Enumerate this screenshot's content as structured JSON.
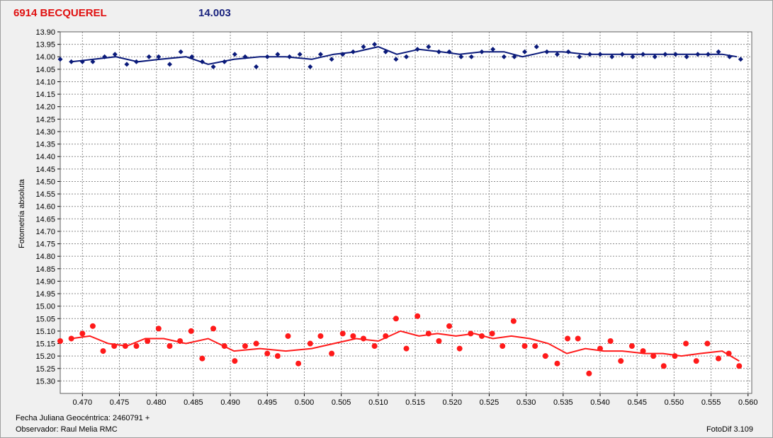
{
  "header": {
    "title": "6914 BECQUEREL",
    "mean_magnitude": "14.003"
  },
  "footer": {
    "jd_label": "Fecha Juliana Geocéntrica: 2460791 +",
    "observer": "Observador: Raul Melia RMC",
    "software": "FotoDif 3.109"
  },
  "colors": {
    "comparison": "#0a1a7a",
    "target": "#ff1a1a",
    "grid": "#8c8c8c",
    "plot_bg": "#ffffff"
  },
  "chart_data": {
    "type": "scatter",
    "title": "6914 BECQUEREL",
    "xlabel": "Fecha Juliana Geocéntrica: 2460791 +",
    "ylabel": "Fotometría absoluta",
    "xlim": [
      0.467,
      0.5605
    ],
    "ylim": [
      13.9,
      15.35
    ],
    "y_inverted": true,
    "grid": true,
    "x_ticks": [
      "0.470",
      "0.475",
      "0.480",
      "0.485",
      "0.490",
      "0.495",
      "0.500",
      "0.505",
      "0.510",
      "0.515",
      "0.520",
      "0.525",
      "0.530",
      "0.535",
      "0.540",
      "0.545",
      "0.550",
      "0.555",
      "0.560"
    ],
    "y_ticks": [
      "13.90",
      "13.95",
      "14.00",
      "14.05",
      "14.10",
      "14.15",
      "14.20",
      "14.25",
      "14.30",
      "14.35",
      "14.40",
      "14.45",
      "14.50",
      "14.55",
      "14.60",
      "14.65",
      "14.70",
      "14.75",
      "14.80",
      "14.85",
      "14.90",
      "14.95",
      "15.00",
      "15.05",
      "15.10",
      "15.15",
      "15.20",
      "15.25",
      "15.30"
    ],
    "series": [
      {
        "name": "",
        "marker": "diamond",
        "x": [
          0.467,
          0.4685,
          0.47,
          0.4714,
          0.473,
          0.4744,
          0.476,
          0.4773,
          0.479,
          0.4803,
          0.4818,
          0.4833,
          0.4848,
          0.4862,
          0.4877,
          0.4892,
          0.4906,
          0.492,
          0.4935,
          0.495,
          0.4964,
          0.498,
          0.4994,
          0.5008,
          0.5022,
          0.5037,
          0.5052,
          0.5066,
          0.508,
          0.5095,
          0.511,
          0.5124,
          0.5138,
          0.5153,
          0.5168,
          0.5182,
          0.5196,
          0.5212,
          0.5226,
          0.524,
          0.5255,
          0.527,
          0.5284,
          0.5298,
          0.5314,
          0.5328,
          0.5342,
          0.5357,
          0.5372,
          0.5386,
          0.54,
          0.5416,
          0.543,
          0.5444,
          0.5458,
          0.5474,
          0.5488,
          0.5502,
          0.5517,
          0.5532,
          0.5546,
          0.556,
          0.5575,
          0.559
        ],
        "y": [
          14.01,
          14.02,
          14.02,
          14.02,
          14.0,
          13.99,
          14.03,
          14.02,
          14.0,
          14.0,
          14.03,
          13.98,
          14.0,
          14.02,
          14.04,
          14.02,
          13.99,
          14.0,
          14.04,
          14.0,
          13.99,
          14.0,
          13.99,
          14.04,
          13.99,
          14.01,
          13.99,
          13.98,
          13.96,
          13.95,
          13.98,
          14.01,
          14.0,
          13.97,
          13.96,
          13.98,
          13.98,
          14.0,
          14.0,
          13.98,
          13.97,
          14.0,
          14.0,
          13.98,
          13.96,
          13.98,
          13.99,
          13.98,
          14.0,
          13.99,
          13.99,
          14.0,
          13.99,
          14.0,
          13.99,
          14.0,
          13.99,
          13.99,
          14.0,
          13.99,
          13.99,
          13.98,
          14.0,
          14.01
        ]
      },
      {
        "name": "",
        "marker": "circle",
        "x": [
          0.467,
          0.4685,
          0.47,
          0.4714,
          0.4728,
          0.4743,
          0.4758,
          0.4773,
          0.4788,
          0.4803,
          0.4818,
          0.4832,
          0.4847,
          0.4862,
          0.4877,
          0.4892,
          0.4906,
          0.492,
          0.4935,
          0.495,
          0.4964,
          0.4978,
          0.4992,
          0.5008,
          0.5022,
          0.5037,
          0.5052,
          0.5066,
          0.508,
          0.5095,
          0.511,
          0.5124,
          0.5138,
          0.5153,
          0.5168,
          0.5182,
          0.5196,
          0.521,
          0.5225,
          0.524,
          0.5254,
          0.5268,
          0.5283,
          0.5298,
          0.5312,
          0.5326,
          0.5342,
          0.5356,
          0.537,
          0.5385,
          0.54,
          0.5414,
          0.5428,
          0.5443,
          0.5458,
          0.5472,
          0.5486,
          0.5501,
          0.5516,
          0.553,
          0.5545,
          0.556,
          0.5574,
          0.5588
        ],
        "y": [
          15.14,
          15.13,
          15.11,
          15.08,
          15.18,
          15.16,
          15.16,
          15.16,
          15.14,
          15.09,
          15.16,
          15.14,
          15.1,
          15.21,
          15.09,
          15.16,
          15.22,
          15.16,
          15.15,
          15.19,
          15.2,
          15.12,
          15.23,
          15.15,
          15.12,
          15.19,
          15.11,
          15.12,
          15.13,
          15.16,
          15.12,
          15.05,
          15.17,
          15.04,
          15.11,
          15.14,
          15.08,
          15.17,
          15.11,
          15.12,
          15.11,
          15.16,
          15.06,
          15.16,
          15.16,
          15.2,
          15.23,
          15.13,
          15.13,
          15.27,
          15.17,
          15.14,
          15.22,
          15.16,
          15.18,
          15.2,
          15.24,
          15.2,
          15.15,
          15.22,
          15.15,
          15.21,
          15.19,
          15.24
        ]
      }
    ],
    "trend": [
      {
        "x": [
          0.4685,
          0.4715,
          0.4745,
          0.4775,
          0.4805,
          0.484,
          0.487,
          0.4905,
          0.494,
          0.4975,
          0.501,
          0.504,
          0.507,
          0.51,
          0.5125,
          0.5155,
          0.5185,
          0.521,
          0.524,
          0.527,
          0.5295,
          0.5325,
          0.535,
          0.538,
          0.5405,
          0.543,
          0.546,
          0.5485,
          0.551,
          0.554,
          0.5565,
          0.5585
        ],
        "y": [
          14.02,
          14.01,
          14.0,
          14.02,
          14.01,
          14.0,
          14.03,
          14.01,
          14.0,
          14.0,
          14.01,
          13.99,
          13.98,
          13.96,
          13.99,
          13.97,
          13.98,
          13.99,
          13.98,
          13.98,
          14.0,
          13.98,
          13.98,
          13.99,
          13.99,
          13.99,
          13.99,
          13.99,
          13.99,
          13.99,
          13.99,
          14.0
        ]
      },
      {
        "x": [
          0.4685,
          0.471,
          0.4735,
          0.476,
          0.4785,
          0.481,
          0.484,
          0.487,
          0.4905,
          0.494,
          0.4975,
          0.501,
          0.504,
          0.507,
          0.51,
          0.513,
          0.5155,
          0.518,
          0.5205,
          0.523,
          0.5255,
          0.528,
          0.5305,
          0.533,
          0.5355,
          0.538,
          0.5405,
          0.543,
          0.546,
          0.5485,
          0.551,
          0.5535,
          0.5565,
          0.5588
        ],
        "y": [
          15.13,
          15.12,
          15.15,
          15.16,
          15.13,
          15.13,
          15.15,
          15.13,
          15.18,
          15.17,
          15.18,
          15.17,
          15.15,
          15.13,
          15.14,
          15.1,
          15.12,
          15.11,
          15.12,
          15.11,
          15.13,
          15.12,
          15.13,
          15.15,
          15.19,
          15.17,
          15.18,
          15.18,
          15.19,
          15.19,
          15.2,
          15.19,
          15.18,
          15.22
        ]
      }
    ]
  }
}
